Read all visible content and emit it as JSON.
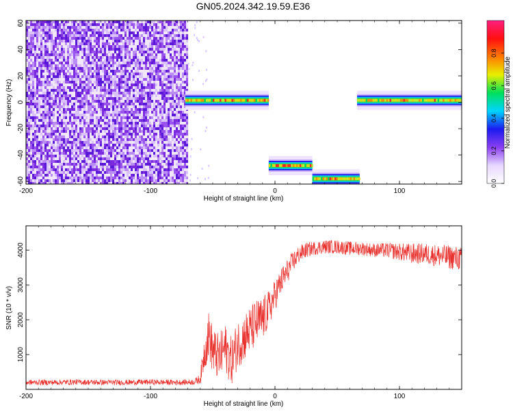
{
  "title": "GN05.2024.342.19.59.E36",
  "chart_data": [
    {
      "type": "heatmap",
      "xlabel": "Height of straight line (km)",
      "ylabel": "Frequency (Hz)",
      "xlim": [
        -200,
        150
      ],
      "ylim": [
        -62,
        62
      ],
      "xticks": [
        -200,
        -100,
        0,
        100
      ],
      "yticks": [
        -60,
        -40,
        -20,
        0,
        20,
        40,
        60
      ],
      "colorbar": {
        "label": "Normalized spectral amplitude",
        "range": [
          0,
          1
        ],
        "ticks": [
          "0.0",
          "0.2",
          "0.4",
          "0.6",
          "0.8"
        ],
        "colors": [
          "#ffffff",
          "#e6d6ff",
          "#8a3ff2",
          "#1b1bf0",
          "#00d4ff",
          "#00e05a",
          "#e8ef00",
          "#ff7a00",
          "#ff1010",
          "#ff1f80"
        ]
      },
      "regions": [
        {
          "kind": "noise",
          "x": [
            -200,
            -70
          ],
          "f": [
            -62,
            62
          ],
          "amplitude": 0.12
        },
        {
          "kind": "tone",
          "x": [
            -72,
            -5
          ],
          "f_center": 1.5,
          "amplitude": 0.8
        },
        {
          "kind": "tone",
          "x": [
            -5,
            30
          ],
          "f_center": -48,
          "amplitude": 0.65
        },
        {
          "kind": "tone",
          "x": [
            30,
            68
          ],
          "f_center": -58,
          "amplitude": 0.55
        },
        {
          "kind": "tone",
          "x": [
            66,
            150
          ],
          "f_center": 1.5,
          "amplitude": 0.75
        }
      ],
      "grid": false
    },
    {
      "type": "line",
      "xlabel": "Height of straight line (km)",
      "ylabel": "SNR (10 * v/v)",
      "xlim": [
        -200,
        150
      ],
      "ylim": [
        0,
        4700
      ],
      "xticks": [
        -200,
        -100,
        0,
        100
      ],
      "yticks": [
        1000,
        2000,
        3000,
        4000
      ],
      "color": "#e8302c",
      "series": [
        {
          "x": [
            -200,
            -180,
            -160,
            -140,
            -120,
            -100,
            -80,
            -65,
            -60,
            -57,
            -53,
            -50,
            -45,
            -40,
            -35,
            -30,
            -25,
            -20,
            -15,
            -10,
            -5,
            0,
            5,
            10,
            15,
            20,
            25,
            30,
            40,
            50,
            60,
            70,
            80,
            90,
            100,
            110,
            120,
            130,
            140,
            150
          ],
          "y": [
            200,
            200,
            210,
            200,
            200,
            210,
            200,
            210,
            300,
            1000,
            1600,
            1100,
            900,
            1200,
            800,
            1300,
            1500,
            1700,
            1900,
            2000,
            2300,
            2700,
            3100,
            3400,
            3700,
            3900,
            4000,
            4050,
            4100,
            4100,
            4050,
            4050,
            4000,
            4000,
            3950,
            3900,
            3900,
            3850,
            3800,
            3750
          ],
          "spread": [
            80,
            80,
            80,
            80,
            80,
            80,
            80,
            80,
            150,
            500,
            700,
            700,
            700,
            700,
            700,
            700,
            700,
            700,
            700,
            650,
            550,
            450,
            400,
            350,
            300,
            250,
            220,
            200,
            200,
            200,
            200,
            200,
            200,
            220,
            250,
            300,
            300,
            320,
            350,
            350
          ]
        }
      ],
      "grid": false
    }
  ]
}
